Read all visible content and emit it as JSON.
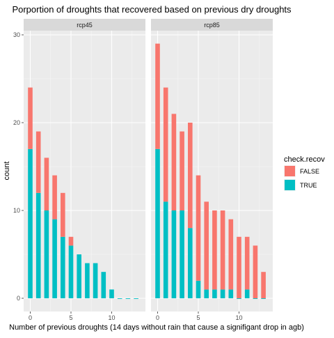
{
  "chart_data": {
    "type": "bar",
    "stacked": true,
    "title": "Porportion of droughts that recovered based on previous dry droughts",
    "xlabel": "Number of previous droughts (14 days without rain that cause a signifigant drop in agb)",
    "ylabel": "count",
    "xlim": [
      -0.6,
      13.6
    ],
    "ylim": [
      0,
      30
    ],
    "x_ticks": [
      0,
      5,
      10
    ],
    "y_ticks": [
      0,
      10,
      20,
      30
    ],
    "grid": true,
    "legend": {
      "title": "check.recov",
      "position": "right",
      "entries": [
        "FALSE",
        "TRUE"
      ]
    },
    "colors": {
      "FALSE": "#F8766D",
      "TRUE": "#00BFC4"
    },
    "x": [
      0,
      1,
      2,
      3,
      4,
      5,
      6,
      7,
      8,
      9,
      10,
      11,
      12,
      13
    ],
    "panels": [
      {
        "name": "rcp45",
        "series": [
          {
            "name": "TRUE",
            "values": [
              17,
              12,
              10,
              9,
              7,
              6,
              5,
              4,
              4,
              3,
              1,
              0,
              0,
              0
            ]
          },
          {
            "name": "FALSE",
            "values": [
              7,
              7,
              6,
              5,
              5,
              1,
              0,
              0,
              0,
              0,
              0,
              0,
              0,
              0
            ]
          }
        ]
      },
      {
        "name": "rcp85",
        "series": [
          {
            "name": "TRUE",
            "values": [
              17,
              11,
              10,
              10,
              8,
              2,
              1,
              1,
              1,
              1,
              0,
              1,
              0,
              0
            ]
          },
          {
            "name": "FALSE",
            "values": [
              12,
              13,
              11,
              9,
              12,
              12,
              10,
              9,
              9,
              8,
              7,
              6,
              6,
              3
            ]
          }
        ]
      }
    ]
  }
}
